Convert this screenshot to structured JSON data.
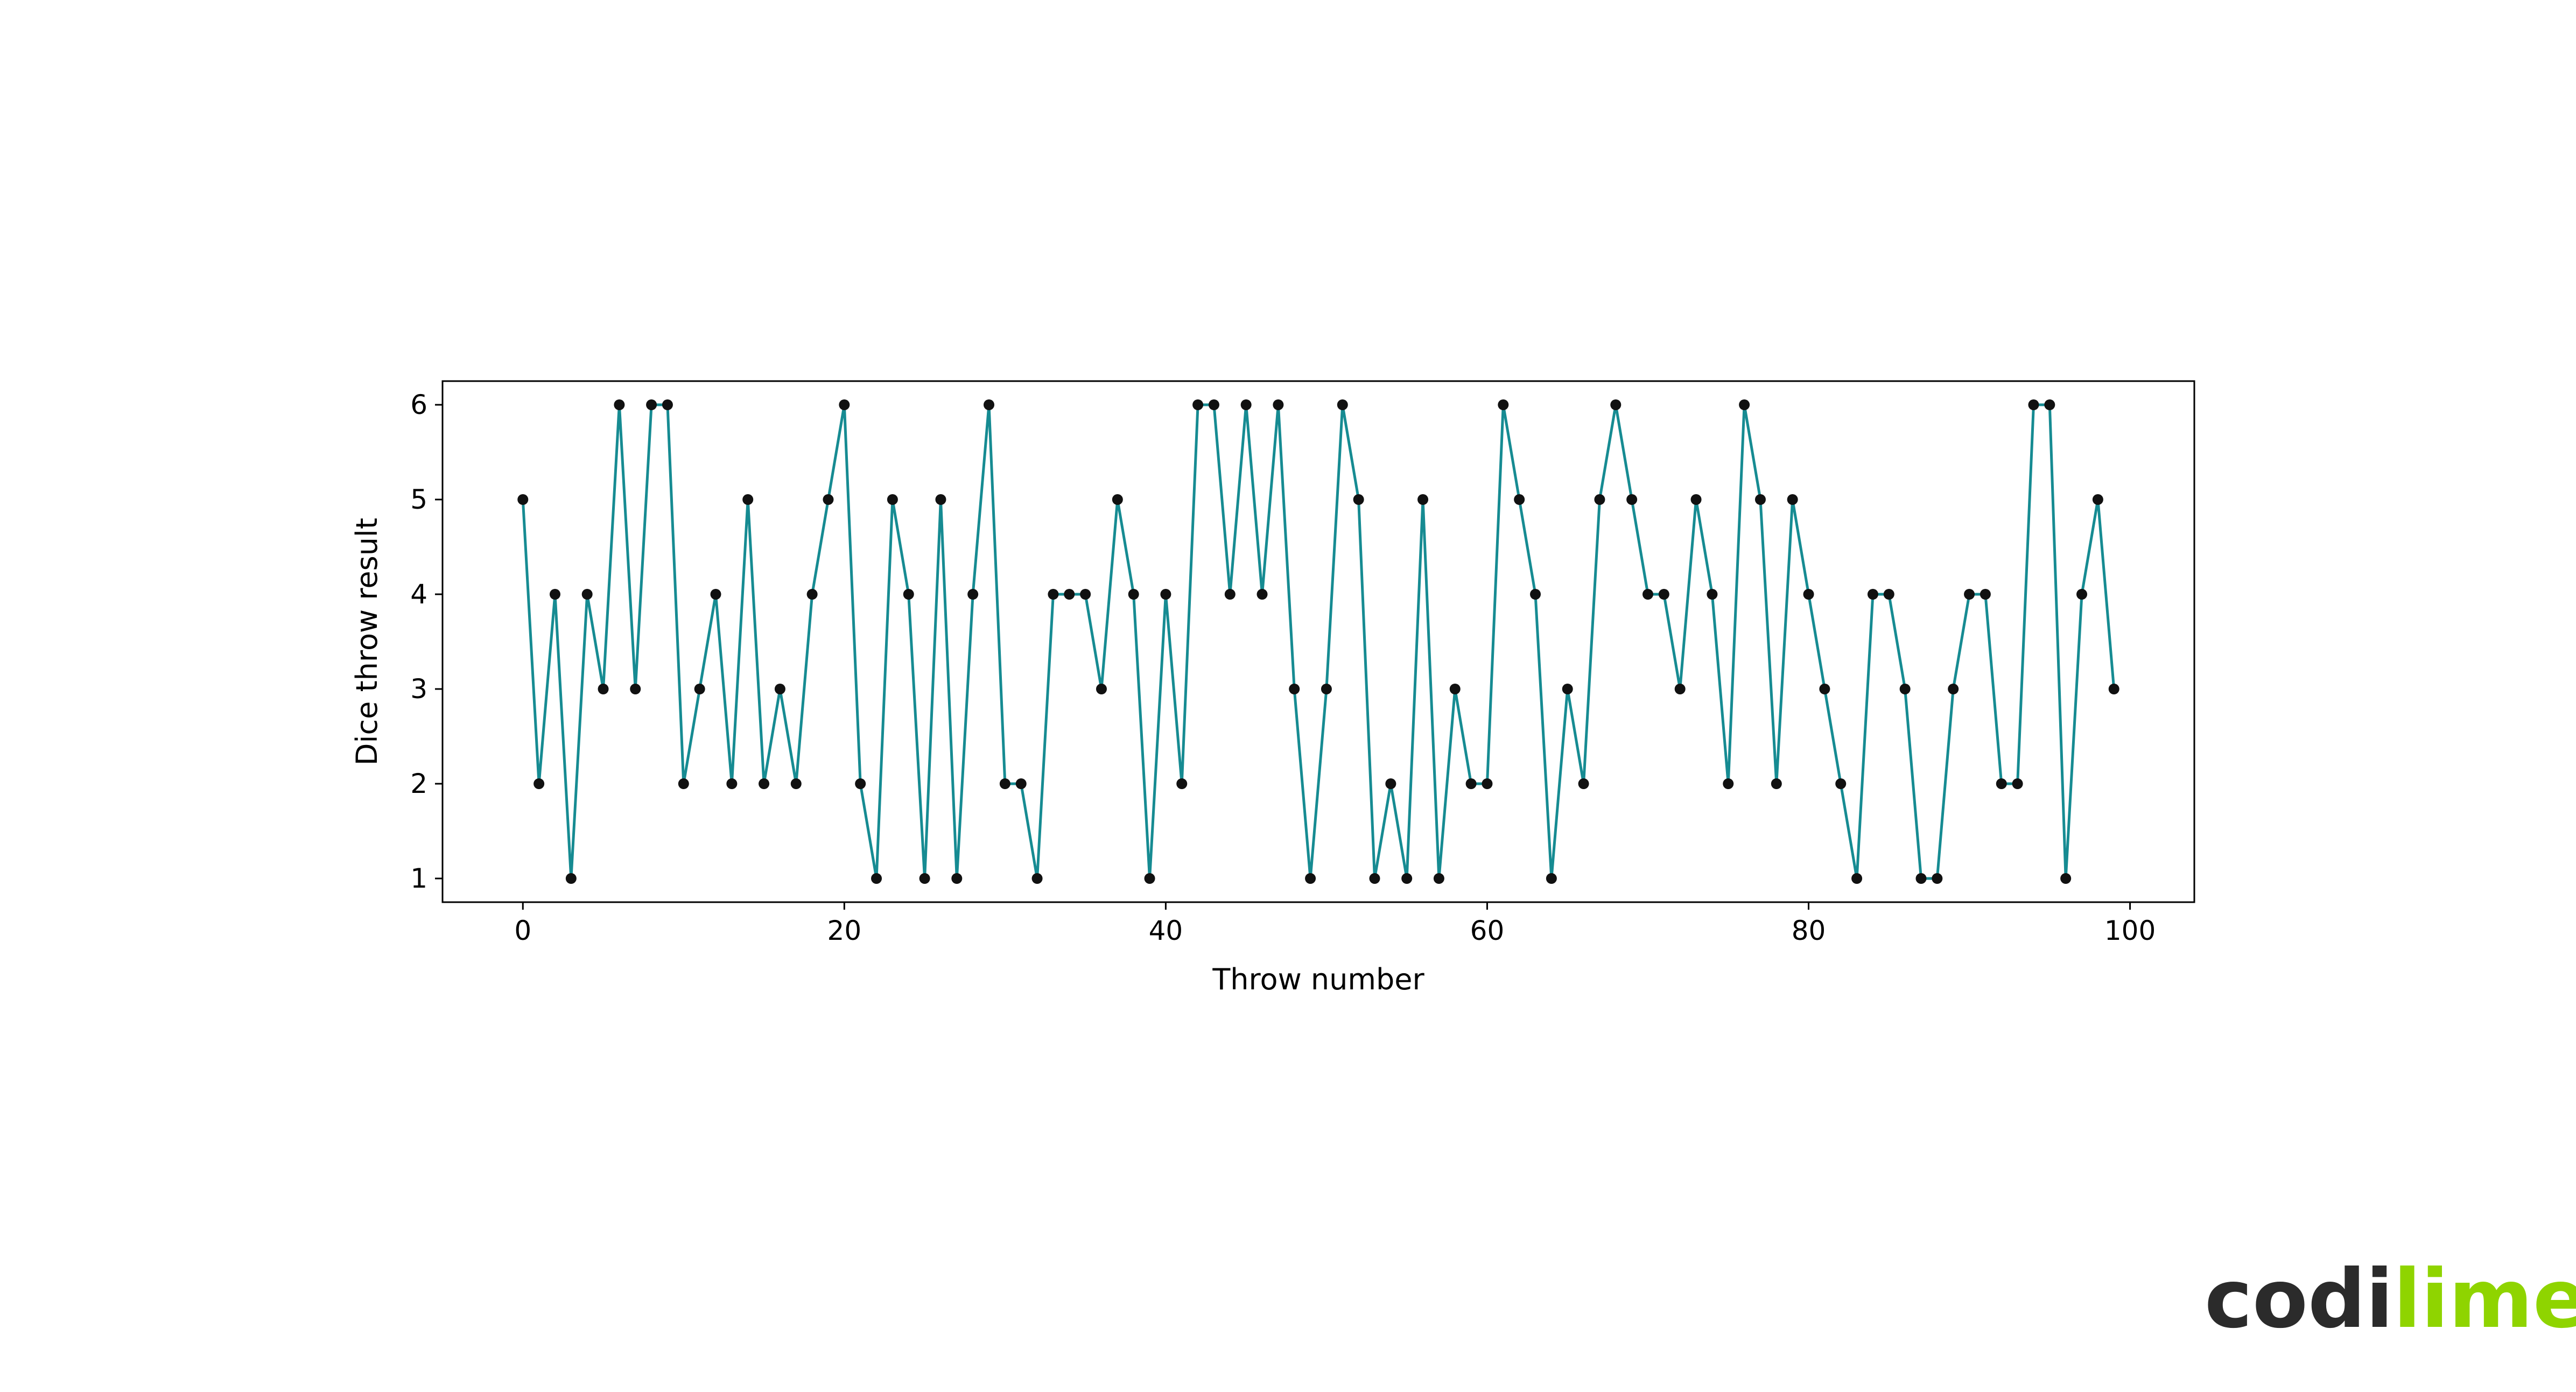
{
  "chart_data": {
    "type": "line",
    "xlabel": "Throw number",
    "ylabel": "Dice throw result",
    "xlim": [
      -5,
      104
    ],
    "ylim": [
      0.75,
      6.25
    ],
    "xticks": [
      0,
      20,
      40,
      60,
      80,
      100
    ],
    "yticks": [
      1,
      2,
      3,
      4,
      5,
      6
    ],
    "grid": false,
    "series": [
      {
        "line_color": "#168b92",
        "marker_color": "#111111",
        "x": [
          0,
          1,
          2,
          3,
          4,
          5,
          6,
          7,
          8,
          9,
          10,
          11,
          12,
          13,
          14,
          15,
          16,
          17,
          18,
          19,
          20,
          21,
          22,
          23,
          24,
          25,
          26,
          27,
          28,
          29,
          30,
          31,
          32,
          33,
          34,
          35,
          36,
          37,
          38,
          39,
          40,
          41,
          42,
          43,
          44,
          45,
          46,
          47,
          48,
          49,
          50,
          51,
          52,
          53,
          54,
          55,
          56,
          57,
          58,
          59,
          60,
          61,
          62,
          63,
          64,
          65,
          66,
          67,
          68,
          69,
          70,
          71,
          72,
          73,
          74,
          75,
          76,
          77,
          78,
          79,
          80,
          81,
          82,
          83,
          84,
          85,
          86,
          87,
          88,
          89,
          90,
          91,
          92,
          93,
          94,
          95,
          96,
          97,
          98,
          99
        ],
        "y": [
          5,
          2,
          4,
          1,
          4,
          3,
          6,
          3,
          6,
          6,
          2,
          3,
          4,
          2,
          5,
          2,
          3,
          2,
          4,
          5,
          6,
          2,
          1,
          5,
          4,
          1,
          5,
          1,
          4,
          6,
          2,
          2,
          1,
          4,
          4,
          4,
          3,
          5,
          4,
          1,
          4,
          2,
          6,
          6,
          4,
          6,
          4,
          6,
          3,
          1,
          3,
          6,
          5,
          1,
          2,
          1,
          5,
          1,
          3,
          2,
          2,
          6,
          5,
          4,
          1,
          3,
          2,
          5,
          6,
          5,
          4,
          4,
          3,
          5,
          4,
          2,
          6,
          5,
          2,
          5,
          4,
          3,
          2,
          1,
          4,
          4,
          3,
          1,
          1,
          3,
          4,
          4,
          2,
          2,
          6,
          6,
          1,
          4,
          5,
          3
        ]
      }
    ]
  },
  "logo": {
    "text_dark": "codi",
    "text_accent": "lime",
    "color_dark": "#2b2b2b",
    "color_accent": "#8fd400"
  }
}
